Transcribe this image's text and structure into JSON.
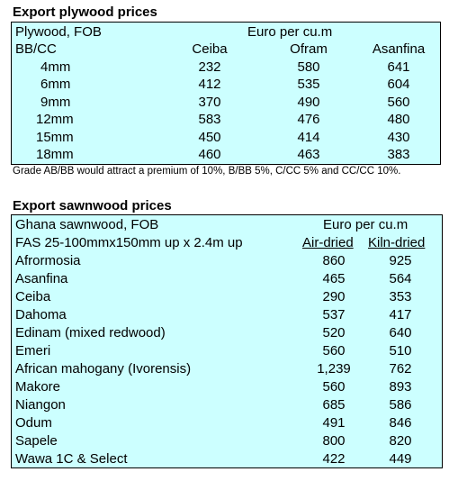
{
  "plywood": {
    "title": "Export plywood prices",
    "header_row1": {
      "label": "Plywood, FOB",
      "unit": "Euro per cu.m"
    },
    "header_row2": {
      "label": "BB/CC",
      "columns": [
        "Ceiba",
        "Ofram",
        "Asanfina"
      ]
    },
    "rows": [
      {
        "label": "4mm",
        "values": [
          "232",
          "580",
          "641"
        ]
      },
      {
        "label": "6mm",
        "values": [
          "412",
          "535",
          "604"
        ]
      },
      {
        "label": "9mm",
        "values": [
          "370",
          "490",
          "560"
        ]
      },
      {
        "label": "12mm",
        "values": [
          "583",
          "476",
          "480"
        ]
      },
      {
        "label": "15mm",
        "values": [
          "450",
          "414",
          "430"
        ]
      },
      {
        "label": "18mm",
        "values": [
          "460",
          "463",
          "383"
        ]
      }
    ],
    "note": "Grade AB/BB would attract a premium of 10%, B/BB 5%, C/CC 5% and CC/CC 10%."
  },
  "sawnwood": {
    "title": "Export sawnwood prices",
    "header_row1": {
      "label": "Ghana sawnwood, FOB",
      "unit": "Euro per cu.m"
    },
    "header_row2": {
      "label": "FAS 25-100mmx150mm up x 2.4m up",
      "columns": [
        "Air-dried",
        "Kiln-dried"
      ]
    },
    "rows": [
      {
        "label": "Afrormosia",
        "values": [
          "860",
          "925"
        ]
      },
      {
        "label": "Asanfina",
        "values": [
          "465",
          "564"
        ]
      },
      {
        "label": "Ceiba",
        "values": [
          "290",
          "353"
        ]
      },
      {
        "label": "Dahoma",
        "values": [
          "537",
          "417"
        ]
      },
      {
        "label": "Edinam (mixed redwood)",
        "values": [
          "520",
          "640"
        ]
      },
      {
        "label": "Emeri",
        "values": [
          "560",
          "510"
        ]
      },
      {
        "label": "African mahogany (Ivorensis)",
        "values": [
          "1,239",
          "762"
        ]
      },
      {
        "label": "Makore",
        "values": [
          "560",
          "893"
        ]
      },
      {
        "label": "Niangon",
        "values": [
          "685",
          "586"
        ]
      },
      {
        "label": "Odum",
        "values": [
          "491",
          "846"
        ]
      },
      {
        "label": "Sapele",
        "values": [
          "800",
          "820"
        ]
      },
      {
        "label": "Wawa 1C & Select",
        "values": [
          "422",
          "449"
        ]
      }
    ]
  },
  "colors": {
    "table_background": "#ccffff",
    "border": "#000000"
  }
}
